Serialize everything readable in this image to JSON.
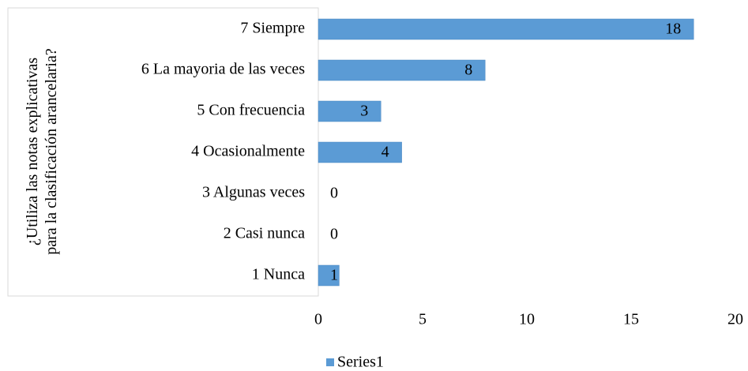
{
  "chart_data": {
    "type": "barh",
    "ylabel": [
      "¿Utiliza las notas explicativas",
      "para la clasificación arancelaria?"
    ],
    "categories": [
      "7 Siempre",
      "6 La mayoria de las veces",
      "5 Con frecuencia",
      "4 Ocasionalmente",
      "3 Algunas veces",
      "2 Casi nunca",
      "1 Nunca"
    ],
    "series": [
      {
        "name": "Series1",
        "color": "#5b9bd5",
        "values": [
          18,
          8,
          3,
          4,
          0,
          0,
          1
        ]
      }
    ],
    "xlim": [
      0,
      20
    ],
    "xticks": [
      0,
      5,
      10,
      15,
      20
    ],
    "legend": "bottom"
  }
}
